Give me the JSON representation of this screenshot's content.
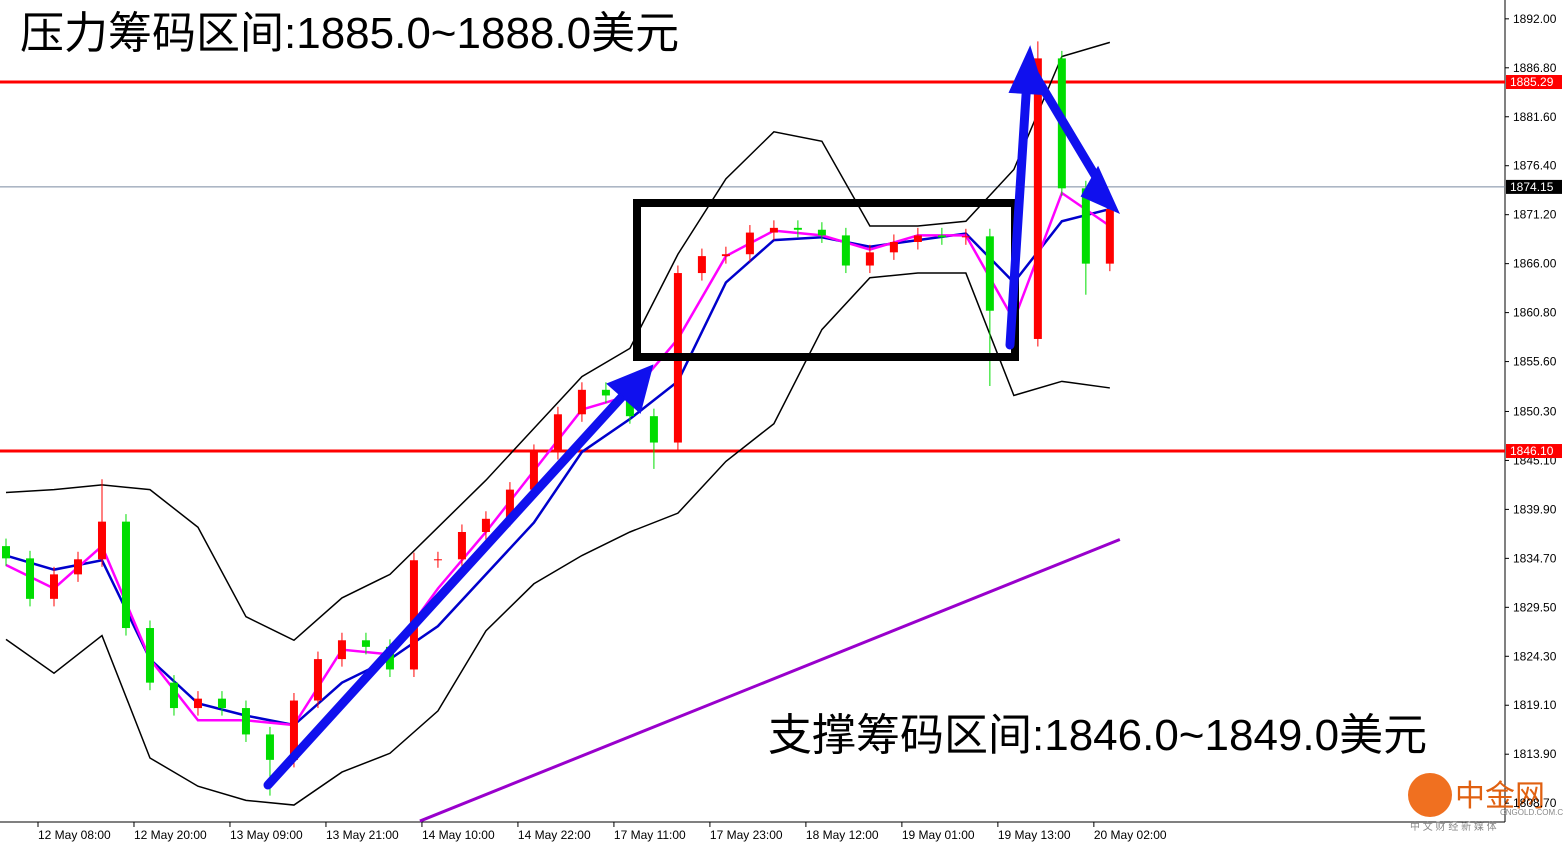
{
  "chart_data": {
    "type": "candlestick",
    "title": "压力筹码区间:1885.0~1888.0美元",
    "subtitle": "支撑筹码区间:1846.0~1849.0美元",
    "up_color": "#ff0000",
    "down_color": "#00dd00",
    "xlim": [
      -4.75,
      183.4
    ],
    "ylim": [
      1806.7,
      1894.0
    ],
    "xticks": [
      {
        "value": 0,
        "label": "12 May 08:00"
      },
      {
        "value": 12,
        "label": "12 May 20:00"
      },
      {
        "value": 24,
        "label": "13 May 09:00"
      },
      {
        "value": 36,
        "label": "13 May 21:00"
      },
      {
        "value": 48,
        "label": "14 May 10:00"
      },
      {
        "value": 60,
        "label": "14 May 22:00"
      },
      {
        "value": 72,
        "label": "17 May 11:00"
      },
      {
        "value": 84,
        "label": "17 May 23:00"
      },
      {
        "value": 96,
        "label": "18 May 12:00"
      },
      {
        "value": 108,
        "label": "19 May 01:00"
      },
      {
        "value": 120,
        "label": "19 May 13:00"
      },
      {
        "value": 132,
        "label": "20 May 02:00"
      }
    ],
    "yticks": [
      {
        "value": 1892,
        "label": "1892.00"
      },
      {
        "value": 1886.8,
        "label": "1886.80"
      },
      {
        "value": 1881.6,
        "label": "1881.60"
      },
      {
        "value": 1876.4,
        "label": "1876.40"
      },
      {
        "value": 1871.2,
        "label": "1871.20"
      },
      {
        "value": 1866,
        "label": "1866.00"
      },
      {
        "value": 1860.8,
        "label": "1860.80"
      },
      {
        "value": 1855.6,
        "label": "1855.60"
      },
      {
        "value": 1850.3,
        "label": "1850.30"
      },
      {
        "value": 1845.1,
        "label": "1845.10"
      },
      {
        "value": 1839.9,
        "label": "1839.90"
      },
      {
        "value": 1834.7,
        "label": "1834.70"
      },
      {
        "value": 1829.5,
        "label": "1829.50"
      },
      {
        "value": 1824.3,
        "label": "1824.30"
      },
      {
        "value": 1819.1,
        "label": "1819.10"
      },
      {
        "value": 1813.9,
        "label": "1813.90"
      },
      {
        "value": 1808.7,
        "label": "1808.70"
      }
    ],
    "x": [
      -4,
      -1,
      2,
      5,
      8,
      11,
      14,
      17,
      20,
      23,
      26,
      29,
      32,
      35,
      38,
      41,
      44,
      47,
      50,
      53,
      56,
      59,
      62,
      65,
      68,
      71,
      74,
      77,
      80,
      83,
      86,
      89,
      92,
      95,
      98,
      101,
      104,
      107,
      110,
      113,
      116,
      119,
      122,
      125,
      128,
      131,
      134
    ],
    "open": [
      1836.0,
      1834.7,
      1830.4,
      1833.0,
      1834.6,
      1838.6,
      1827.3,
      1821.5,
      1818.8,
      1819.8,
      1818.8,
      1816.0,
      1813.3,
      1819.6,
      1824.0,
      1826.0,
      1825.3,
      1822.9,
      1834.5,
      1834.6,
      1837.5,
      1838.9,
      1842.0,
      1846.0,
      1850.0,
      1852.6,
      1852.0,
      1849.8,
      1847.0,
      1865.0,
      1866.8,
      1867.0,
      1869.3,
      1869.8,
      1869.6,
      1869.0,
      1865.8,
      1867.2,
      1868.3,
      1869.0,
      1868.8,
      1868.9,
      1861.0,
      1858.0,
      1887.8,
      1874.0,
      1866.0
    ],
    "high": [
      1836.8,
      1835.5,
      1833.8,
      1835.4,
      1843.1,
      1839.4,
      1828.1,
      1822.3,
      1820.6,
      1820.6,
      1819.6,
      1816.8,
      1820.4,
      1824.8,
      1826.8,
      1826.8,
      1826.1,
      1835.3,
      1835.4,
      1838.3,
      1839.7,
      1842.8,
      1846.8,
      1850.8,
      1853.4,
      1853.4,
      1852.8,
      1850.6,
      1865.8,
      1867.6,
      1867.8,
      1870.1,
      1870.6,
      1870.6,
      1870.4,
      1869.8,
      1868.0,
      1869.1,
      1869.8,
      1869.8,
      1869.7,
      1869.7,
      1861.8,
      1889.6,
      1888.6,
      1874.8,
      1872.6
    ],
    "low": [
      1833.9,
      1829.6,
      1829.6,
      1832.2,
      1833.8,
      1826.5,
      1820.7,
      1818.0,
      1818.0,
      1818.0,
      1815.2,
      1809.5,
      1812.5,
      1818.8,
      1823.2,
      1824.5,
      1822.1,
      1822.1,
      1833.7,
      1833.8,
      1836.7,
      1838.1,
      1841.2,
      1845.2,
      1849.2,
      1851.2,
      1849.0,
      1844.2,
      1846.2,
      1864.2,
      1866.0,
      1866.2,
      1868.5,
      1868.8,
      1868.2,
      1865.0,
      1865.0,
      1866.4,
      1867.5,
      1868.0,
      1868.0,
      1853.0,
      1857.2,
      1857.2,
      1873.2,
      1862.7,
      1865.2
    ],
    "close": [
      1834.7,
      1830.4,
      1833.0,
      1834.6,
      1838.6,
      1827.3,
      1821.5,
      1818.8,
      1819.8,
      1818.8,
      1816.0,
      1813.3,
      1819.6,
      1824.0,
      1826.0,
      1825.3,
      1822.9,
      1834.5,
      1834.6,
      1837.5,
      1838.9,
      1842.0,
      1846.0,
      1850.0,
      1852.6,
      1852.0,
      1849.8,
      1847.0,
      1865.0,
      1866.8,
      1867.0,
      1869.3,
      1869.8,
      1869.6,
      1869.0,
      1865.8,
      1867.2,
      1868.3,
      1869.0,
      1868.8,
      1868.9,
      1861.0,
      1858.0,
      1887.8,
      1874.0,
      1866.0,
      1871.8
    ],
    "lines": [
      {
        "color": "#000000",
        "x": [
          -4,
          2,
          8,
          14,
          20,
          26,
          32,
          38,
          44,
          50,
          56,
          62,
          68,
          74,
          80,
          86,
          92,
          98,
          104,
          110,
          116,
          122,
          128,
          134
        ],
        "values": [
          1841.7,
          1842.0,
          1842.5,
          1842.0,
          1838.0,
          1828.5,
          1826.0,
          1830.5,
          1833.0,
          1838.0,
          1843.0,
          1848.5,
          1854.0,
          1857.0,
          1867.0,
          1875.0,
          1880.0,
          1879.0,
          1870.0,
          1870.0,
          1870.5,
          1876.0,
          1888.0,
          1889.5
        ]
      },
      {
        "color": "#000000",
        "x": [
          -4,
          2,
          8,
          14,
          20,
          26,
          32,
          38,
          44,
          50,
          56,
          62,
          68,
          74,
          80,
          86,
          92,
          98,
          104,
          110,
          116,
          122,
          128,
          134
        ],
        "values": [
          1826.1,
          1822.5,
          1826.5,
          1813.5,
          1810.5,
          1809.0,
          1808.5,
          1812.0,
          1814.0,
          1818.5,
          1827.0,
          1832.0,
          1835.0,
          1837.5,
          1839.5,
          1845.0,
          1849.0,
          1859.0,
          1864.5,
          1865.0,
          1865.0,
          1852.0,
          1853.5,
          1852.8
        ]
      },
      {
        "color": "#0000cc",
        "x": [
          -4,
          2,
          8,
          14,
          20,
          26,
          32,
          38,
          44,
          50,
          56,
          62,
          68,
          74,
          80,
          86,
          92,
          98,
          104,
          110,
          116,
          122,
          128,
          134
        ],
        "values": [
          1835.0,
          1833.5,
          1834.5,
          1824.0,
          1819.3,
          1818.0,
          1817.0,
          1821.5,
          1824.0,
          1827.5,
          1833.0,
          1838.5,
          1846.0,
          1849.5,
          1853.5,
          1864.0,
          1868.5,
          1868.8,
          1867.8,
          1868.5,
          1869.2,
          1864.0,
          1870.5,
          1871.8
        ]
      },
      {
        "color": "#ff00ff",
        "x": [
          -4,
          2,
          8,
          14,
          20,
          26,
          32,
          38,
          44,
          50,
          56,
          62,
          68,
          74,
          80,
          86,
          92,
          98,
          104,
          110,
          116,
          122,
          128,
          134
        ],
        "values": [
          1834.0,
          1831.5,
          1836.0,
          1824.0,
          1817.5,
          1817.5,
          1817.0,
          1825.0,
          1824.5,
          1831.5,
          1837.5,
          1844.0,
          1850.5,
          1852.0,
          1858.0,
          1866.8,
          1869.5,
          1869.0,
          1867.5,
          1869.0,
          1869.0,
          1860.0,
          1873.5,
          1870.0
        ]
      },
      {
        "color": "#9900cc",
        "x": [
          47.75,
          135.25
        ],
        "values": [
          1806.8,
          1836.7
        ]
      }
    ],
    "price_lines": [
      {
        "value": 1885.29,
        "color": "#ff0000"
      },
      {
        "value": 1846.1,
        "label": "1846.10",
        "color": "#ff0000"
      },
      {
        "value": 1874.15,
        "color": "#000000"
      }
    ],
    "logo": {
      "name": "中金网",
      "domain": "CNGOLD.COM.CN",
      "slogan": "中 文 财 经 新 媒 体"
    }
  }
}
